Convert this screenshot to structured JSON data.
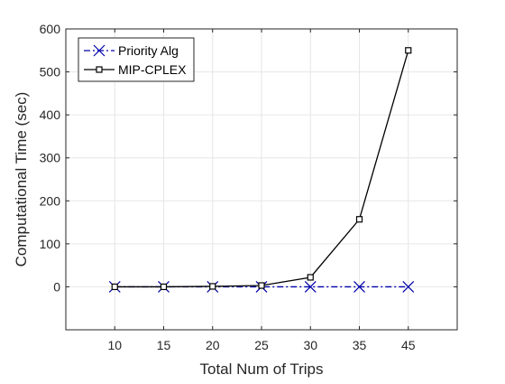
{
  "chart_data": {
    "type": "line",
    "title": "",
    "xlabel": "Total Num of Trips",
    "ylabel": "Computational Time (sec)",
    "categories": [
      "10",
      "15",
      "20",
      "25",
      "30",
      "35",
      "45"
    ],
    "xlim": [
      0,
      8
    ],
    "ylim": [
      -100,
      600
    ],
    "yticks": [
      0,
      100,
      200,
      300,
      400,
      500,
      600
    ],
    "grid": true,
    "legend_position": "top-left",
    "series": [
      {
        "name": "Priority Alg",
        "values": [
          0,
          0,
          0,
          0,
          0,
          0,
          0
        ],
        "color": "#0000aa",
        "line_style": "dash-dot",
        "marker": "x"
      },
      {
        "name": "MIP-CPLEX",
        "values": [
          0,
          0,
          1,
          3,
          22,
          157,
          550
        ],
        "color": "#000000",
        "line_style": "solid",
        "marker": "square"
      }
    ]
  }
}
